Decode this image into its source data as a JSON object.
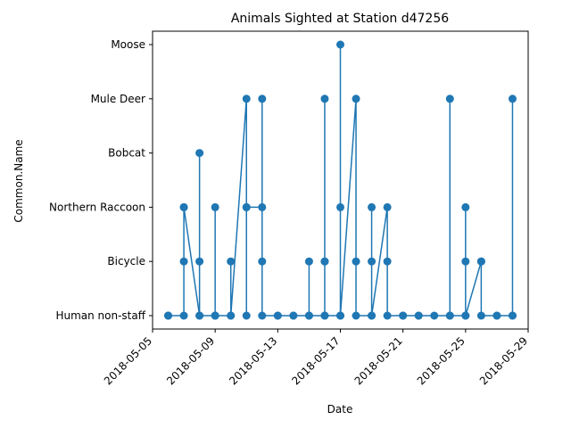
{
  "chart_data": {
    "type": "line",
    "title": "Animals Sighted at Station d47256",
    "xlabel": "Date",
    "ylabel": "Common.Name",
    "color": "#1f77b4",
    "marker": "circle",
    "grid": false,
    "legend": "none",
    "y_categories": [
      "Human non-staff",
      "Bicycle",
      "Northern Raccoon",
      "Bobcat",
      "Mule Deer",
      "Moose"
    ],
    "x_ticks": [
      "2018-05-05",
      "2018-05-09",
      "2018-05-13",
      "2018-05-17",
      "2018-05-21",
      "2018-05-25",
      "2018-05-29"
    ],
    "xlim": [
      "2018-05-05",
      "2018-05-29"
    ],
    "points": [
      {
        "x": "2018-05-06",
        "y": "Human non-staff"
      },
      {
        "x": "2018-05-06",
        "y": "Human non-staff"
      },
      {
        "x": "2018-05-06",
        "y": "Human non-staff"
      },
      {
        "x": "2018-05-07",
        "y": "Human non-staff"
      },
      {
        "x": "2018-05-07",
        "y": "Bicycle"
      },
      {
        "x": "2018-05-07",
        "y": "Northern Raccoon"
      },
      {
        "x": "2018-05-07",
        "y": "Northern Raccoon"
      },
      {
        "x": "2018-05-08",
        "y": "Human non-staff"
      },
      {
        "x": "2018-05-08",
        "y": "Bobcat"
      },
      {
        "x": "2018-05-08",
        "y": "Bicycle"
      },
      {
        "x": "2018-05-08",
        "y": "Human non-staff"
      },
      {
        "x": "2018-05-09",
        "y": "Human non-staff"
      },
      {
        "x": "2018-05-09",
        "y": "Northern Raccoon"
      },
      {
        "x": "2018-05-09",
        "y": "Human non-staff"
      },
      {
        "x": "2018-05-09",
        "y": "Human non-staff"
      },
      {
        "x": "2018-05-10",
        "y": "Human non-staff"
      },
      {
        "x": "2018-05-10",
        "y": "Bicycle"
      },
      {
        "x": "2018-05-10",
        "y": "Human non-staff"
      },
      {
        "x": "2018-05-11",
        "y": "Mule Deer"
      },
      {
        "x": "2018-05-11",
        "y": "Northern Raccoon"
      },
      {
        "x": "2018-05-11",
        "y": "Human non-staff"
      },
      {
        "x": "2018-05-11",
        "y": "Northern Raccoon"
      },
      {
        "x": "2018-05-12",
        "y": "Northern Raccoon"
      },
      {
        "x": "2018-05-12",
        "y": "Mule Deer"
      },
      {
        "x": "2018-05-12",
        "y": "Bicycle"
      },
      {
        "x": "2018-05-12",
        "y": "Human non-staff"
      },
      {
        "x": "2018-05-13",
        "y": "Human non-staff"
      },
      {
        "x": "2018-05-13",
        "y": "Human non-staff"
      },
      {
        "x": "2018-05-14",
        "y": "Human non-staff"
      },
      {
        "x": "2018-05-14",
        "y": "Human non-staff"
      },
      {
        "x": "2018-05-15",
        "y": "Human non-staff"
      },
      {
        "x": "2018-05-15",
        "y": "Bicycle"
      },
      {
        "x": "2018-05-15",
        "y": "Human non-staff"
      },
      {
        "x": "2018-05-16",
        "y": "Human non-staff"
      },
      {
        "x": "2018-05-16",
        "y": "Bicycle"
      },
      {
        "x": "2018-05-16",
        "y": "Mule Deer"
      },
      {
        "x": "2018-05-16",
        "y": "Bicycle"
      },
      {
        "x": "2018-05-16",
        "y": "Human non-staff"
      },
      {
        "x": "2018-05-17",
        "y": "Human non-staff"
      },
      {
        "x": "2018-05-17",
        "y": "Moose"
      },
      {
        "x": "2018-05-17",
        "y": "Northern Raccoon"
      },
      {
        "x": "2018-05-17",
        "y": "Human non-staff"
      },
      {
        "x": "2018-05-18",
        "y": "Mule Deer"
      },
      {
        "x": "2018-05-18",
        "y": "Bicycle"
      },
      {
        "x": "2018-05-18",
        "y": "Human non-staff"
      },
      {
        "x": "2018-05-19",
        "y": "Human non-staff"
      },
      {
        "x": "2018-05-19",
        "y": "Northern Raccoon"
      },
      {
        "x": "2018-05-19",
        "y": "Bicycle"
      },
      {
        "x": "2018-05-19",
        "y": "Human non-staff"
      },
      {
        "x": "2018-05-20",
        "y": "Northern Raccoon"
      },
      {
        "x": "2018-05-20",
        "y": "Bicycle"
      },
      {
        "x": "2018-05-20",
        "y": "Human non-staff"
      },
      {
        "x": "2018-05-21",
        "y": "Human non-staff"
      },
      {
        "x": "2018-05-21",
        "y": "Human non-staff"
      },
      {
        "x": "2018-05-22",
        "y": "Human non-staff"
      },
      {
        "x": "2018-05-22",
        "y": "Human non-staff"
      },
      {
        "x": "2018-05-23",
        "y": "Human non-staff"
      },
      {
        "x": "2018-05-24",
        "y": "Human non-staff"
      },
      {
        "x": "2018-05-24",
        "y": "Mule Deer"
      },
      {
        "x": "2018-05-24",
        "y": "Human non-staff"
      },
      {
        "x": "2018-05-25",
        "y": "Human non-staff"
      },
      {
        "x": "2018-05-25",
        "y": "Northern Raccoon"
      },
      {
        "x": "2018-05-25",
        "y": "Bicycle"
      },
      {
        "x": "2018-05-25",
        "y": "Human non-staff"
      },
      {
        "x": "2018-05-26",
        "y": "Bicycle"
      },
      {
        "x": "2018-05-26",
        "y": "Bicycle"
      },
      {
        "x": "2018-05-26",
        "y": "Human non-staff"
      },
      {
        "x": "2018-05-27",
        "y": "Human non-staff"
      },
      {
        "x": "2018-05-27",
        "y": "Human non-staff"
      },
      {
        "x": "2018-05-28",
        "y": "Human non-staff"
      },
      {
        "x": "2018-05-28",
        "y": "Mule Deer"
      },
      {
        "x": "2018-05-28",
        "y": "Human non-staff"
      }
    ]
  }
}
